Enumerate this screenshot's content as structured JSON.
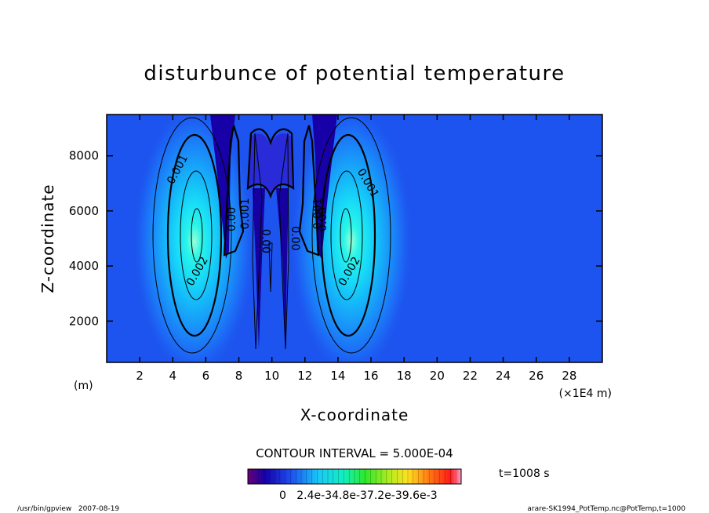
{
  "chart_data": {
    "type": "heatmap",
    "title": "disturbunce of potential temperature",
    "xlabel": "X-coordinate",
    "ylabel": "Z-coordinate",
    "x_unit_left": "(m)",
    "x_unit_right": "(×1E4 m)",
    "xlim": [
      0,
      30
    ],
    "ylim": [
      500,
      9500
    ],
    "xticks": [
      2,
      4,
      6,
      8,
      10,
      12,
      14,
      16,
      18,
      20,
      22,
      24,
      26,
      28
    ],
    "yticks": [
      2000,
      4000,
      6000,
      8000
    ],
    "contour_interval_text": "CONTOUR INTERVAL = 5.000E-04",
    "time_text": "t=1008 s",
    "colorbar_labels": [
      "0",
      "2.4e-3",
      "4.8e-3",
      "7.2e-3",
      "9.6e-3"
    ],
    "colorbar_text": "0   2.4e-34.8e-37.2e-39.6e-3",
    "contour_labels": [
      {
        "text": "0.001",
        "x": 4.3,
        "z": 7500,
        "angle": -62
      },
      {
        "text": "0.002",
        "x": 5.5,
        "z": 3800,
        "angle": -60
      },
      {
        "text": "0.00",
        "x": 7.6,
        "z": 5700,
        "angle": -90
      },
      {
        "text": "0.001",
        "x": 8.4,
        "z": 5900,
        "angle": -90
      },
      {
        "text": "0.00",
        "x": 9.6,
        "z": 4900,
        "angle": 90
      },
      {
        "text": "0.00",
        "x": 11.4,
        "z": 5000,
        "angle": 90
      },
      {
        "text": "0.001",
        "x": 12.8,
        "z": 5900,
        "angle": -90
      },
      {
        "text": "0.00",
        "x": 13.1,
        "z": 5700,
        "angle": -90
      },
      {
        "text": "0.001",
        "x": 15.8,
        "z": 7000,
        "angle": 60
      },
      {
        "text": "0.002",
        "x": 14.7,
        "z": 3800,
        "angle": -60
      }
    ],
    "blobs": [
      {
        "x": 5.3,
        "z": 4900,
        "peak": 0.0025
      },
      {
        "x": 14.8,
        "z": 4900,
        "peak": 0.0025
      }
    ],
    "grid": false
  },
  "footer": {
    "left": "/usr/bin/gpview   2007-08-19",
    "right": "arare-SK1994_PotTemp.nc@PotTemp,t=1000"
  }
}
